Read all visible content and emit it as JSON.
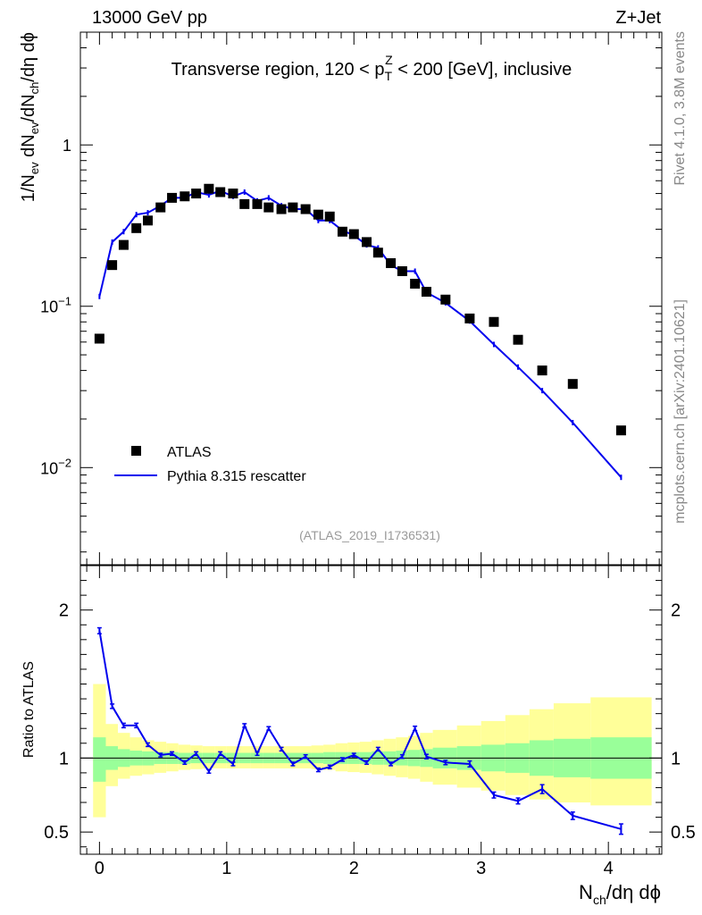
{
  "header": {
    "left": "13000 GeV pp",
    "right": "Z+Jet",
    "side_rivet": "Rivet 4.1.0,  3.8M events",
    "side_mcplots": "mcplots.cern.ch [arXiv:2401.10621]"
  },
  "colors": {
    "mc": "#0000ee",
    "data": "#000000",
    "band_inner": "#99ff99",
    "band_outer": "#ffff99"
  },
  "chart_data": [
    {
      "type": "scatter",
      "title_pre": "Transverse region, 120 < p",
      "title_sup": "Z",
      "title_sub": "T",
      "title_post": " < 200 [GeV], inclusive",
      "ylabel": "1/N_ev dN_ev/dN_ch/dη dϕ",
      "ylog": true,
      "xlim": [
        -0.15,
        4.42
      ],
      "ylim": [
        0.0025,
        5.0
      ],
      "yticks": [
        0.01,
        0.1,
        1
      ],
      "ytick_labels": [
        {
          "base": "10",
          "exp": "−2"
        },
        {
          "base": "10",
          "exp": "−1"
        },
        {
          "base": "1",
          "exp": ""
        }
      ],
      "analysis_label": "(ATLAS_2019_I1736531)",
      "legend": [
        {
          "label": "ATLAS",
          "kind": "marker"
        },
        {
          "label": "Pythia 8.315 rescatter",
          "kind": "line"
        }
      ],
      "data_x": [
        0,
        0.1,
        0.19,
        0.29,
        0.38,
        0.48,
        0.57,
        0.67,
        0.76,
        0.86,
        0.95,
        1.05,
        1.14,
        1.24,
        1.33,
        1.43,
        1.52,
        1.62,
        1.72,
        1.81,
        1.91,
        2.0,
        2.1,
        2.19,
        2.29,
        2.38,
        2.48,
        2.57,
        2.72,
        2.91,
        3.1,
        3.29,
        3.48,
        3.72,
        4.1
      ],
      "data_y": [
        0.063,
        0.18,
        0.24,
        0.305,
        0.34,
        0.41,
        0.47,
        0.48,
        0.5,
        0.535,
        0.51,
        0.5,
        0.43,
        0.43,
        0.41,
        0.4,
        0.41,
        0.4,
        0.37,
        0.36,
        0.29,
        0.28,
        0.25,
        0.215,
        0.185,
        0.165,
        0.138,
        0.123,
        0.11,
        0.084,
        0.08,
        0.062,
        0.04,
        0.033,
        0.017
      ],
      "mc_x": [
        0,
        0.1,
        0.19,
        0.29,
        0.38,
        0.48,
        0.57,
        0.67,
        0.76,
        0.86,
        0.95,
        1.05,
        1.14,
        1.24,
        1.33,
        1.43,
        1.52,
        1.62,
        1.72,
        1.81,
        1.91,
        2.0,
        2.1,
        2.19,
        2.29,
        2.38,
        2.48,
        2.57,
        2.72,
        2.91,
        3.1,
        3.29,
        3.48,
        3.72,
        4.1
      ],
      "mc_y": [
        0.115,
        0.25,
        0.29,
        0.37,
        0.38,
        0.42,
        0.47,
        0.47,
        0.51,
        0.49,
        0.52,
        0.48,
        0.51,
        0.45,
        0.47,
        0.42,
        0.4,
        0.4,
        0.34,
        0.34,
        0.295,
        0.275,
        0.24,
        0.23,
        0.18,
        0.165,
        0.165,
        0.122,
        0.105,
        0.081,
        0.058,
        0.042,
        0.03,
        0.019,
        0.0087
      ]
    },
    {
      "type": "line",
      "ylabel": "Ratio to ATLAS",
      "xlabel_base": "N",
      "xlabel_sub": "ch",
      "xlabel_rest": "/dη dϕ",
      "xlim": [
        -0.15,
        4.42
      ],
      "ylim": [
        0.35,
        2.3
      ],
      "yticks": [
        0.5,
        1,
        2
      ],
      "ytick_labels": [
        "0.5",
        "1",
        "2"
      ],
      "xticks": [
        0,
        1,
        2,
        3,
        4
      ],
      "xtick_labels": [
        "0",
        "1",
        "2",
        "3",
        "4"
      ],
      "band_edges": [
        -0.05,
        0.05,
        0.145,
        0.24,
        0.335,
        0.43,
        0.525,
        0.62,
        0.715,
        0.81,
        0.905,
        1.0,
        1.095,
        1.19,
        1.285,
        1.38,
        1.475,
        1.57,
        1.665,
        1.76,
        1.855,
        1.95,
        2.045,
        2.14,
        2.235,
        2.33,
        2.425,
        2.52,
        2.62,
        2.81,
        3.0,
        3.19,
        3.38,
        3.57,
        3.86,
        4.34
      ],
      "inner_lo": [
        0.84,
        0.92,
        0.94,
        0.95,
        0.95,
        0.96,
        0.96,
        0.96,
        0.965,
        0.965,
        0.965,
        0.965,
        0.965,
        0.965,
        0.965,
        0.965,
        0.965,
        0.965,
        0.965,
        0.96,
        0.96,
        0.96,
        0.96,
        0.955,
        0.955,
        0.95,
        0.945,
        0.94,
        0.93,
        0.92,
        0.91,
        0.9,
        0.88,
        0.87,
        0.86
      ],
      "inner_hi": [
        1.14,
        1.08,
        1.06,
        1.05,
        1.045,
        1.04,
        1.04,
        1.035,
        1.035,
        1.035,
        1.035,
        1.035,
        1.035,
        1.035,
        1.035,
        1.035,
        1.035,
        1.035,
        1.035,
        1.04,
        1.04,
        1.04,
        1.04,
        1.045,
        1.045,
        1.05,
        1.055,
        1.06,
        1.07,
        1.08,
        1.09,
        1.1,
        1.12,
        1.13,
        1.14
      ],
      "outer_lo": [
        0.6,
        0.81,
        0.86,
        0.88,
        0.89,
        0.9,
        0.91,
        0.92,
        0.925,
        0.93,
        0.93,
        0.93,
        0.93,
        0.93,
        0.93,
        0.93,
        0.93,
        0.93,
        0.925,
        0.92,
        0.91,
        0.905,
        0.9,
        0.89,
        0.88,
        0.87,
        0.86,
        0.84,
        0.82,
        0.8,
        0.78,
        0.75,
        0.72,
        0.7,
        0.68
      ],
      "outer_hi": [
        1.5,
        1.23,
        1.17,
        1.14,
        1.12,
        1.11,
        1.1,
        1.09,
        1.085,
        1.08,
        1.08,
        1.08,
        1.08,
        1.08,
        1.08,
        1.08,
        1.08,
        1.08,
        1.085,
        1.09,
        1.1,
        1.105,
        1.11,
        1.12,
        1.13,
        1.14,
        1.15,
        1.17,
        1.19,
        1.22,
        1.25,
        1.29,
        1.33,
        1.37,
        1.41
      ],
      "ratio_x": [
        0,
        0.1,
        0.19,
        0.29,
        0.38,
        0.48,
        0.57,
        0.67,
        0.76,
        0.86,
        0.95,
        1.05,
        1.14,
        1.24,
        1.33,
        1.43,
        1.52,
        1.62,
        1.72,
        1.81,
        1.91,
        2.0,
        2.1,
        2.19,
        2.29,
        2.38,
        2.48,
        2.57,
        2.72,
        2.91,
        3.1,
        3.29,
        3.48,
        3.72,
        4.1
      ],
      "ratio_y": [
        1.86,
        1.35,
        1.22,
        1.22,
        1.09,
        1.02,
        1.03,
        0.97,
        1.03,
        0.91,
        1.03,
        0.96,
        1.22,
        1.03,
        1.2,
        1.06,
        0.96,
        1.01,
        0.92,
        0.94,
        0.99,
        1.02,
        0.97,
        1.06,
        0.96,
        1.01,
        1.2,
        1.01,
        0.97,
        0.96,
        0.75,
        0.71,
        0.79,
        0.61,
        0.52
      ],
      "ratio_err": [
        0.02,
        0.015,
        0.015,
        0.015,
        0.012,
        0.012,
        0.012,
        0.012,
        0.012,
        0.012,
        0.012,
        0.012,
        0.012,
        0.012,
        0.012,
        0.012,
        0.012,
        0.012,
        0.012,
        0.012,
        0.012,
        0.012,
        0.012,
        0.012,
        0.012,
        0.012,
        0.015,
        0.015,
        0.015,
        0.02,
        0.02,
        0.02,
        0.03,
        0.025,
        0.035
      ]
    }
  ]
}
